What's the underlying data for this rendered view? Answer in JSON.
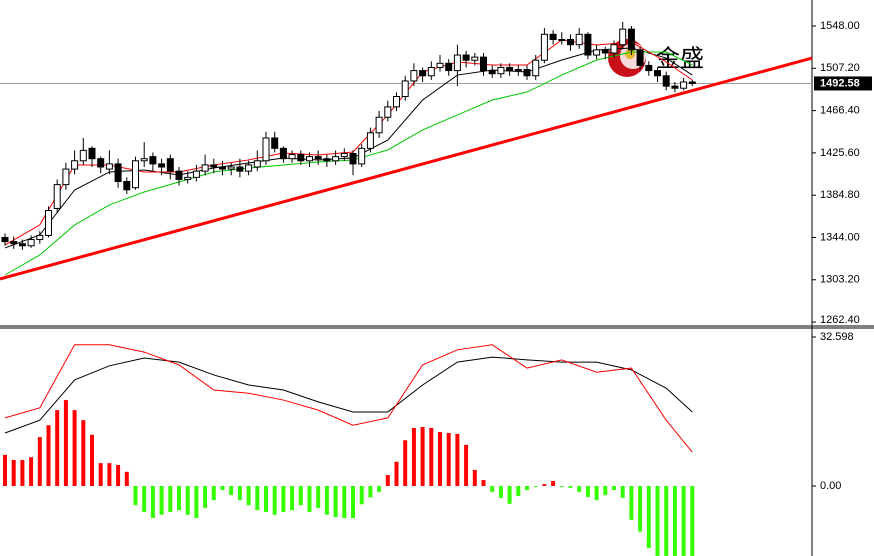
{
  "chart_data": [
    {
      "type": "candlestick",
      "ylim": [
        1258.6,
        1573.1
      ],
      "yticks": [
        {
          "value": 1548,
          "label": "1548.00"
        },
        {
          "value": 1507.2,
          "label": "1507.20"
        },
        {
          "value": 1466.4,
          "label": "1466.40"
        },
        {
          "value": 1425.6,
          "label": "1425.60"
        },
        {
          "value": 1384.8,
          "label": "1384.80"
        },
        {
          "value": 1344,
          "label": "1344.00"
        },
        {
          "value": 1303.2,
          "label": "1303.20"
        },
        {
          "value": 1262.4,
          "label": "1262.40"
        }
      ],
      "current_price": 1492.58,
      "watermark": "金盛",
      "candles": [
        [
          1344,
          1348,
          1336,
          1340
        ],
        [
          1340,
          1345,
          1333,
          1338
        ],
        [
          1338,
          1342,
          1332,
          1336
        ],
        [
          1336,
          1346,
          1334,
          1342
        ],
        [
          1342,
          1350,
          1338,
          1346
        ],
        [
          1346,
          1374,
          1344,
          1370
        ],
        [
          1372,
          1400,
          1368,
          1395
        ],
        [
          1395,
          1416,
          1390,
          1410
        ],
        [
          1410,
          1428,
          1405,
          1418
        ],
        [
          1418,
          1440,
          1414,
          1428
        ],
        [
          1430,
          1432,
          1412,
          1420
        ],
        [
          1420,
          1422,
          1406,
          1412
        ],
        [
          1410,
          1428,
          1405,
          1415
        ],
        [
          1415,
          1420,
          1392,
          1398
        ],
        [
          1398,
          1402,
          1386,
          1390
        ],
        [
          1392,
          1422,
          1390,
          1418
        ],
        [
          1418,
          1436,
          1412,
          1420
        ],
        [
          1422,
          1426,
          1408,
          1415
        ],
        [
          1415,
          1420,
          1404,
          1412
        ],
        [
          1420,
          1424,
          1400,
          1408
        ],
        [
          1408,
          1412,
          1394,
          1400
        ],
        [
          1400,
          1408,
          1396,
          1402
        ],
        [
          1402,
          1414,
          1398,
          1408
        ],
        [
          1408,
          1424,
          1404,
          1414
        ],
        [
          1414,
          1420,
          1406,
          1412
        ],
        [
          1412,
          1418,
          1404,
          1410
        ],
        [
          1410,
          1416,
          1404,
          1412
        ],
        [
          1412,
          1420,
          1402,
          1408
        ],
        [
          1408,
          1418,
          1404,
          1414
        ],
        [
          1412,
          1428,
          1408,
          1418
        ],
        [
          1418,
          1446,
          1414,
          1440
        ],
        [
          1440,
          1446,
          1426,
          1430
        ],
        [
          1430,
          1432,
          1416,
          1420
        ],
        [
          1420,
          1428,
          1416,
          1424
        ],
        [
          1424,
          1428,
          1414,
          1418
        ],
        [
          1418,
          1426,
          1412,
          1422
        ],
        [
          1422,
          1428,
          1414,
          1420
        ],
        [
          1420,
          1424,
          1412,
          1418
        ],
        [
          1418,
          1428,
          1414,
          1422
        ],
        [
          1422,
          1430,
          1418,
          1425
        ],
        [
          1425,
          1428,
          1404,
          1415
        ],
        [
          1415,
          1434,
          1412,
          1430
        ],
        [
          1430,
          1450,
          1426,
          1445
        ],
        [
          1445,
          1466,
          1440,
          1460
        ],
        [
          1460,
          1476,
          1456,
          1470
        ],
        [
          1470,
          1484,
          1466,
          1480
        ],
        [
          1480,
          1500,
          1476,
          1495
        ],
        [
          1495,
          1512,
          1490,
          1505
        ],
        [
          1505,
          1508,
          1494,
          1500
        ],
        [
          1500,
          1514,
          1496,
          1508
        ],
        [
          1508,
          1520,
          1504,
          1512
        ],
        [
          1512,
          1516,
          1500,
          1505
        ],
        [
          1505,
          1530,
          1490,
          1520
        ],
        [
          1520,
          1524,
          1508,
          1515
        ],
        [
          1515,
          1522,
          1510,
          1518
        ],
        [
          1518,
          1522,
          1500,
          1505
        ],
        [
          1505,
          1510,
          1498,
          1502
        ],
        [
          1502,
          1512,
          1498,
          1508
        ],
        [
          1508,
          1512,
          1500,
          1505
        ],
        [
          1505,
          1510,
          1500,
          1506
        ],
        [
          1506,
          1510,
          1496,
          1500
        ],
        [
          1500,
          1520,
          1496,
          1515
        ],
        [
          1515,
          1546,
          1512,
          1540
        ],
        [
          1540,
          1544,
          1530,
          1535
        ],
        [
          1535,
          1542,
          1530,
          1535
        ],
        [
          1535,
          1540,
          1524,
          1530
        ],
        [
          1530,
          1546,
          1526,
          1540
        ],
        [
          1540,
          1542,
          1516,
          1520
        ],
        [
          1520,
          1530,
          1516,
          1525
        ],
        [
          1525,
          1528,
          1516,
          1522
        ],
        [
          1522,
          1534,
          1518,
          1530
        ],
        [
          1530,
          1552,
          1526,
          1545
        ],
        [
          1545,
          1548,
          1520,
          1525
        ],
        [
          1525,
          1528,
          1506,
          1510
        ],
        [
          1510,
          1514,
          1500,
          1505
        ],
        [
          1505,
          1508,
          1494,
          1500
        ],
        [
          1500,
          1504,
          1486,
          1490
        ],
        [
          1490,
          1494,
          1484,
          1488
        ],
        [
          1488,
          1498,
          1486,
          1494
        ],
        [
          1494,
          1496,
          1490,
          1492.58
        ]
      ],
      "line_x": [
        0,
        4,
        8,
        12,
        16,
        20,
        24,
        28,
        32,
        36,
        40,
        44,
        48,
        52,
        56,
        60,
        64,
        68,
        72,
        76,
        79
      ],
      "series": [
        {
          "color": "#000000",
          "values": [
            1333.9,
            1346.4,
            1389.8,
            1407.2,
            1409.1,
            1404.3,
            1411.0,
            1415.9,
            1420.7,
            1418.8,
            1420.7,
            1438.0,
            1476.6,
            1500.7,
            1505.6,
            1503.6,
            1515.2,
            1524.9,
            1526.8,
            1517.1,
            1500.7
          ]
        },
        {
          "color": "#00c800",
          "values": [
            1307.8,
            1327.1,
            1356.1,
            1375.4,
            1387.9,
            1397.5,
            1407.2,
            1411.0,
            1413.9,
            1416.8,
            1418.8,
            1428.4,
            1447.7,
            1462.2,
            1476.6,
            1484.3,
            1500.7,
            1515.2,
            1522.9,
            1522.9,
            1510.4
          ]
        },
        {
          "color": "#ff0000",
          "values": [
            1336.8,
            1356.1,
            1413.9,
            1413.9,
            1407.2,
            1407.2,
            1413.9,
            1418.8,
            1425.5,
            1423.6,
            1426.5,
            1462.2,
            1503.6,
            1513.3,
            1510.4,
            1510.4,
            1534.5,
            1529.7,
            1532.6,
            1513.3,
            1495.9
          ]
        }
      ],
      "trendline": {
        "color": "#ff0000",
        "values": [
          1304.0,
          1517.1
        ]
      }
    },
    {
      "type": "macd",
      "ylim": [
        -15.32,
        34.57
      ],
      "yticks": [
        32.598,
        {
          "value": 0,
          "label": "0.00"
        }
      ],
      "up_color": "#ff0000",
      "down_color": "#33ff00",
      "values": [
        6.8,
        5.7,
        5.7,
        6.3,
        10.7,
        13.3,
        16.6,
        18.8,
        16.6,
        14.4,
        11.2,
        5.0,
        5.0,
        4.6,
        3.1,
        -4.2,
        -5.7,
        -7.0,
        -6.3,
        -5.7,
        -5.3,
        -6.3,
        -7.0,
        -4.8,
        -3.1,
        -0.9,
        -2.0,
        -3.1,
        -4.2,
        -5.3,
        -5.7,
        -6.3,
        -5.7,
        -5.3,
        -4.2,
        -5.7,
        -4.8,
        -6.3,
        -6.8,
        -7.0,
        -7.0,
        -4.0,
        -2.5,
        -1.3,
        2.4,
        5.3,
        10.0,
        12.7,
        12.9,
        12.7,
        11.8,
        11.6,
        11.4,
        9.0,
        3.5,
        1.3,
        -1.3,
        -2.6,
        -3.9,
        -2.2,
        -0.9,
        -0.2,
        0.4,
        1.1,
        -0.2,
        -0.4,
        -1.3,
        -2.4,
        -3.1,
        -2.0,
        -0.9,
        -2.6,
        -7.4,
        -10.0,
        -13.6,
        -15.3,
        -15.3,
        -15.3,
        -15.3,
        -15.3
      ],
      "line_x": [
        0,
        4,
        8,
        12,
        16,
        20,
        24,
        28,
        32,
        36,
        40,
        44,
        48,
        52,
        56,
        60,
        64,
        68,
        72,
        76,
        79
      ],
      "series": [
        {
          "color": "#000000",
          "values": [
            11.6,
            14.4,
            23.2,
            26.3,
            28.0,
            27.1,
            24.3,
            22.1,
            21.0,
            18.4,
            16.2,
            16.2,
            22.1,
            27.1,
            28.2,
            27.6,
            27.1,
            27.1,
            25.4,
            21.4,
            16.2
          ]
        },
        {
          "color": "#ff0000",
          "values": [
            14.9,
            17.1,
            30.9,
            30.9,
            29.3,
            26.5,
            21.0,
            20.3,
            18.8,
            16.6,
            13.3,
            14.9,
            26.5,
            29.8,
            30.9,
            25.8,
            27.6,
            24.9,
            25.8,
            14.4,
            7.4
          ]
        }
      ]
    }
  ]
}
